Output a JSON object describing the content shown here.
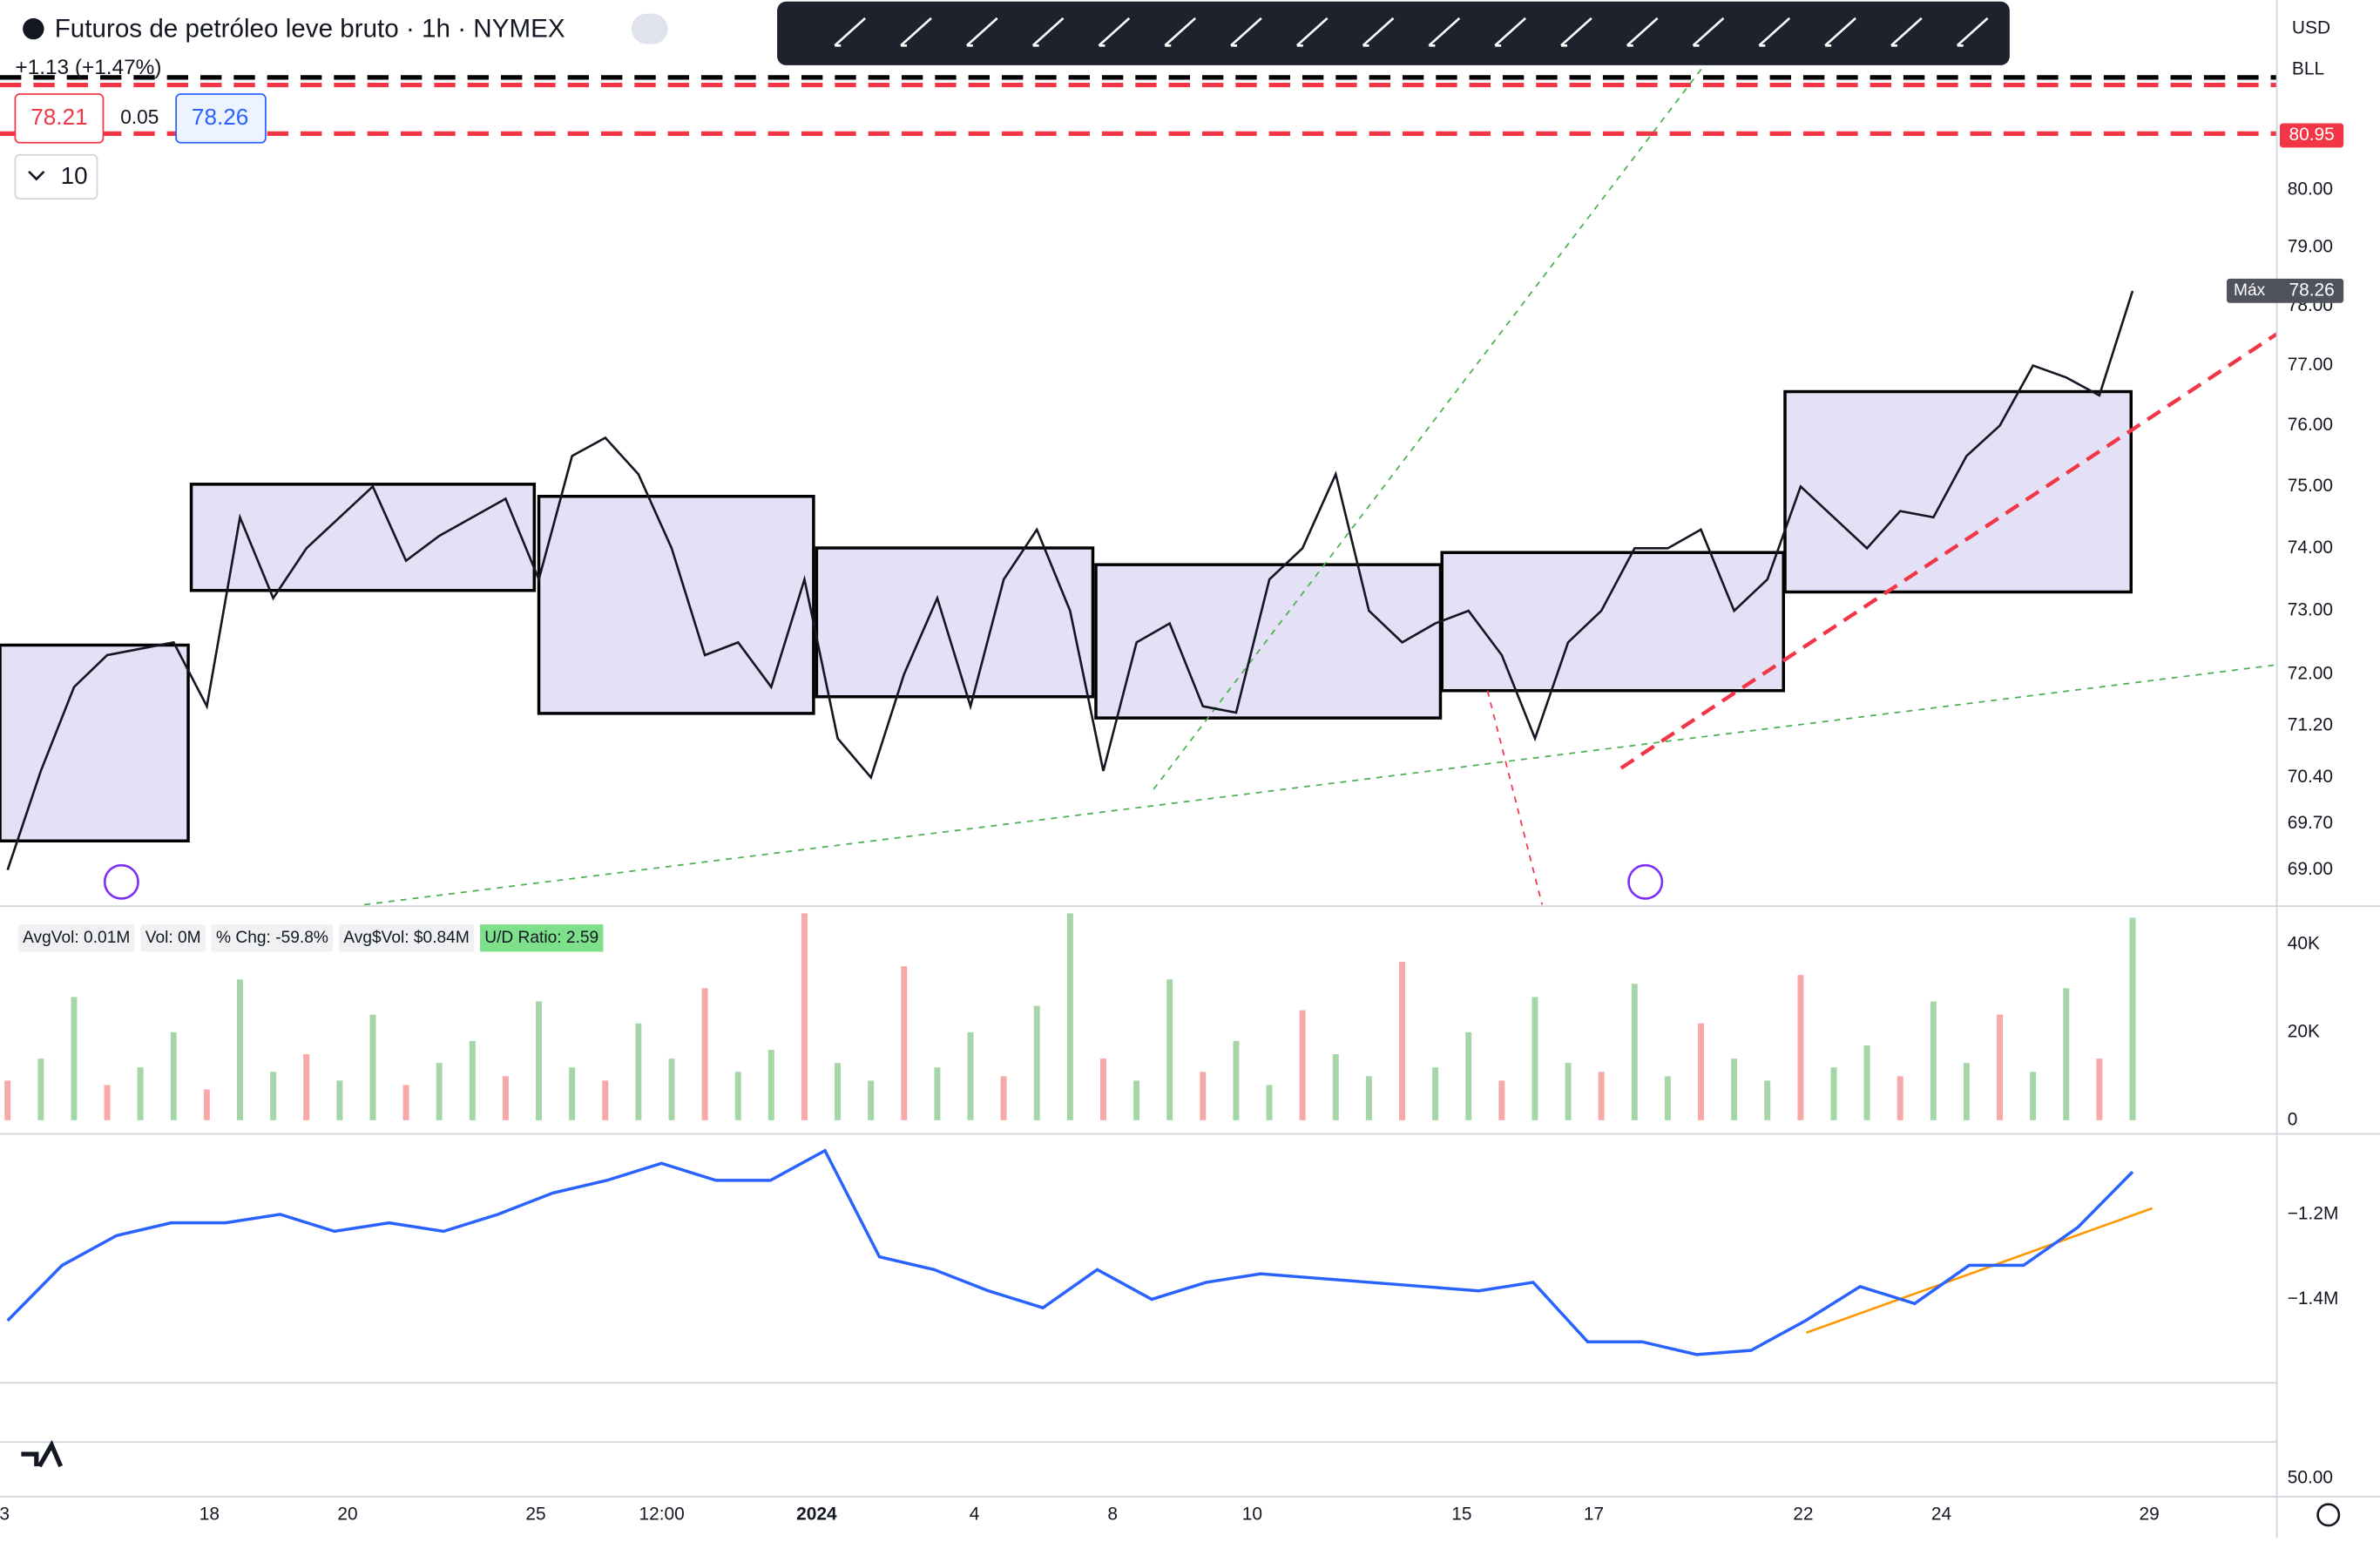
{
  "header": {
    "symbol": "Futuros de petróleo leve bruto · 1h · NYMEX",
    "change": "+1.13 (+1.47%)",
    "bid": "78.21",
    "spread": "0.05",
    "ask": "78.26",
    "interval": "10",
    "currency": "USD",
    "unit": "BLL"
  },
  "price_chart": {
    "type": "line",
    "log_scale": true,
    "color": "#131722",
    "ylim": [
      68.48,
      83.37
    ],
    "yticks": [
      {
        "value": 69,
        "label": "69.00"
      },
      {
        "value": 69.7,
        "label": "69.70"
      },
      {
        "value": 70.4,
        "label": "70.40"
      },
      {
        "value": 71.2,
        "label": "71.20"
      },
      {
        "value": 72,
        "label": "72.00"
      },
      {
        "value": 73,
        "label": "73.00"
      },
      {
        "value": 74,
        "label": "74.00"
      },
      {
        "value": 75,
        "label": "75.00"
      },
      {
        "value": 76,
        "label": "76.00"
      },
      {
        "value": 77,
        "label": "77.00"
      },
      {
        "value": 78,
        "label": "78.00"
      },
      {
        "value": 79,
        "label": "79.00"
      },
      {
        "value": 80,
        "label": "80.00"
      }
    ],
    "alert_price": 80.95,
    "max_label": "Máx",
    "max_value": 78.26,
    "values": [
      69.0,
      70.5,
      71.8,
      72.3,
      72.4,
      72.5,
      71.5,
      74.5,
      73.2,
      74.0,
      74.5,
      75.0,
      73.8,
      74.2,
      74.5,
      74.8,
      73.5,
      75.5,
      75.8,
      75.2,
      74.0,
      72.3,
      72.5,
      71.8,
      73.5,
      71.0,
      70.4,
      72.0,
      73.2,
      71.5,
      73.5,
      74.3,
      73.0,
      70.5,
      72.5,
      72.8,
      71.5,
      71.4,
      73.5,
      74.0,
      75.2,
      73.0,
      72.5,
      72.8,
      73.0,
      72.3,
      71.0,
      72.5,
      73.0,
      74.0,
      74.0,
      74.3,
      73.0,
      73.5,
      75.0,
      74.5,
      74.0,
      74.6,
      74.5,
      75.5,
      76.0,
      77.0,
      76.8,
      76.5,
      78.26
    ]
  },
  "volume_pane": {
    "type": "bar",
    "labels": [
      "AvgVol: 0.01M",
      "Vol: 0M",
      "% Chg: -59.8%",
      "Avg$Vol: $0.84M",
      "U/D Ratio: 2.59"
    ],
    "ylim": [
      0,
      47600
    ],
    "yticks": [
      0,
      {
        "value": 20000,
        "label": "20K"
      },
      {
        "value": 40000,
        "label": "40K"
      }
    ],
    "values": [
      9000,
      14000,
      28000,
      8000,
      12000,
      20000,
      7000,
      32000,
      11000,
      15000,
      9000,
      24000,
      8000,
      13000,
      18000,
      10000,
      27000,
      12000,
      9000,
      22000,
      14000,
      30000,
      11000,
      16000,
      47000,
      13000,
      9000,
      35000,
      12000,
      20000,
      10000,
      26000,
      47000,
      14000,
      9000,
      32000,
      11000,
      18000,
      8000,
      25000,
      15000,
      10000,
      36000,
      12000,
      20000,
      9000,
      28000,
      13000,
      11000,
      31000,
      10000,
      22000,
      14000,
      9000,
      33000,
      12000,
      17000,
      10000,
      27000,
      13000,
      24000,
      11000,
      30000,
      14000,
      46000
    ]
  },
  "cvd_pane": {
    "type": "line",
    "ylim": [
      -1592900,
      -1014300
    ],
    "yticks": [
      {
        "value": -1200000,
        "label": "−1.2M"
      },
      {
        "value": -1400000,
        "label": "−1.4M"
      }
    ],
    "values": [
      -1450000,
      -1320000,
      -1250000,
      -1220000,
      -1220000,
      -1200000,
      -1240000,
      -1220000,
      -1240000,
      -1200000,
      -1150000,
      -1120000,
      -1080000,
      -1120000,
      -1120000,
      -1050000,
      -1300000,
      -1330000,
      -1380000,
      -1420000,
      -1330000,
      -1400000,
      -1360000,
      -1340000,
      -1350000,
      -1360000,
      -1370000,
      -1380000,
      -1360000,
      -1500000,
      -1500000,
      -1530000,
      -1520000,
      -1450000,
      -1370000,
      -1410000,
      -1320000,
      -1320000,
      -1230000,
      -1100000
    ]
  },
  "rsi_pane": {
    "yticks": [
      {
        "value": 50,
        "label": "50.00"
      }
    ]
  },
  "time_axis": [
    "3",
    "18",
    "20",
    "25",
    "12:00",
    "2024",
    "4",
    "8",
    "10",
    "15",
    "17",
    "22",
    "24",
    "29"
  ]
}
